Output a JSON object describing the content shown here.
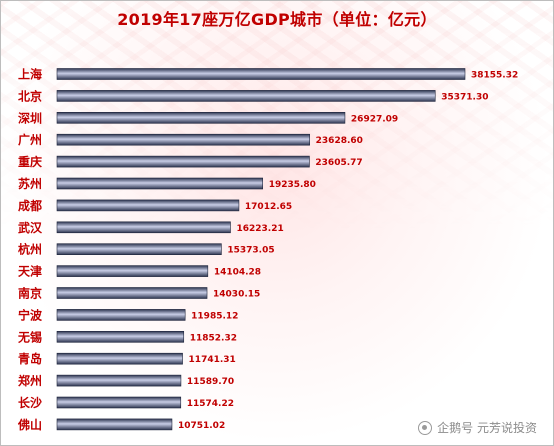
{
  "chart_data": {
    "type": "bar",
    "orientation": "horizontal",
    "title": "2019年17座万亿GDP城市（单位：亿元）",
    "categories": [
      "上海",
      "北京",
      "深圳",
      "广州",
      "重庆",
      "苏州",
      "成都",
      "武汉",
      "杭州",
      "天津",
      "南京",
      "宁波",
      "无锡",
      "青岛",
      "郑州",
      "长沙",
      "佛山"
    ],
    "values": [
      38155.32,
      35371.3,
      26927.09,
      23628.6,
      23605.77,
      19235.8,
      17012.65,
      16223.21,
      15373.05,
      14104.28,
      14030.15,
      11985.12,
      11852.32,
      11741.31,
      11589.7,
      11574.22,
      10751.02
    ],
    "value_labels": [
      "38155.32",
      "35371.30",
      "26927.09",
      "23628.60",
      "23605.77",
      "19235.80",
      "17012.65",
      "16223.21",
      "15373.05",
      "14104.28",
      "14030.15",
      "11985.12",
      "11852.32",
      "11741.31",
      "11589.70",
      "11574.22",
      "10751.02"
    ],
    "xlim": [
      0,
      38155.32
    ],
    "grid": false,
    "colors": {
      "bar_dark": "#2d3550",
      "bar_light": "#c8cde6",
      "text": "#c00000"
    }
  },
  "watermark": {
    "icon": "penguin-icon",
    "text": "企鹅号 元芳说投资"
  }
}
